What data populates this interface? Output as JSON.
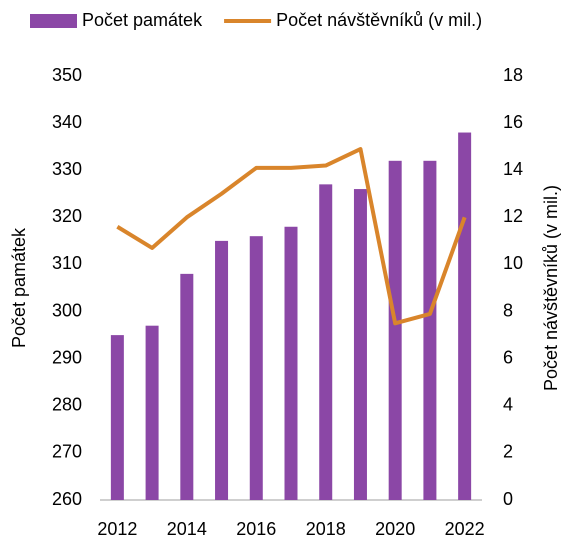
{
  "chart_data": {
    "type": "bar",
    "categories": [
      "2012",
      null,
      "2014",
      null,
      "2016",
      null,
      "2018",
      null,
      "2020",
      null,
      "2022"
    ],
    "series": [
      {
        "name": "Počet památek",
        "type": "bar",
        "color": "#8b47a6",
        "values": [
          295,
          297,
          308,
          315,
          316,
          318,
          327,
          326,
          332,
          332,
          338
        ]
      },
      {
        "name": "Počet návštěvníků (v mil.)",
        "type": "line",
        "axis": "y2",
        "color": "#d9852b",
        "values": [
          11.6,
          10.7,
          12,
          13,
          14.1,
          14.1,
          14.2,
          14.9,
          7.5,
          7.9,
          12
        ]
      }
    ],
    "y_label": "Počet památek",
    "y2_label": "Počet návštěvníků (v mil.)",
    "ylim": [
      260,
      350
    ],
    "yticks": [
      260,
      270,
      280,
      290,
      300,
      310,
      320,
      330,
      340,
      350
    ],
    "y2lim": [
      0,
      18
    ],
    "y2ticks": [
      0,
      2,
      4,
      6,
      8,
      10,
      12,
      14,
      16,
      18
    ],
    "grid": false,
    "legend": "top"
  }
}
